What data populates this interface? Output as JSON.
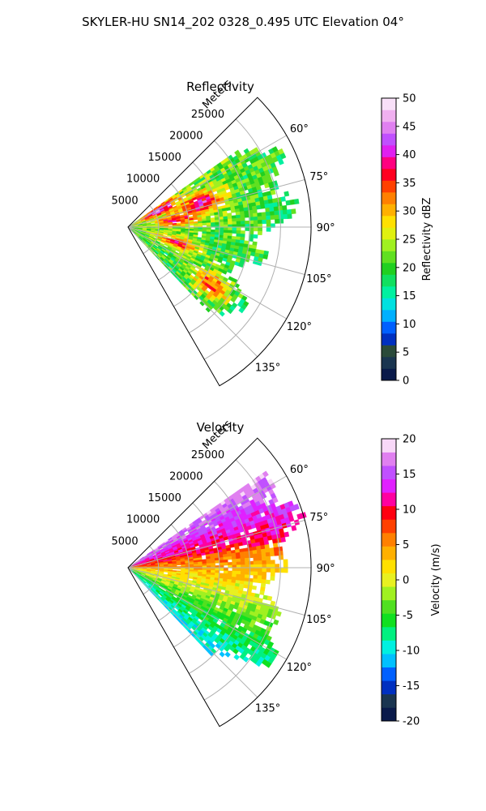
{
  "figure_title": "SKYLER-HU  SN14_202  0328_0.495 UTC Elevation 04°",
  "chart_data": [
    {
      "type": "heatmap",
      "projection": "polar-sector",
      "title": "Reflectivity",
      "radial_label": "Meters",
      "radial_ticks": [
        5000,
        10000,
        15000,
        20000,
        25000
      ],
      "radial_tick_labels": [
        "5000",
        "10000",
        "15000",
        "20000",
        "25000"
      ],
      "rmax": 30000,
      "azimuth_range": [
        45,
        150
      ],
      "azimuth_ticks": [
        60,
        75,
        90,
        105,
        120,
        135
      ],
      "azimuth_tick_labels": [
        "60°",
        "75°",
        "90°",
        "105°",
        "120°",
        "135°"
      ],
      "grid": true,
      "colorbar": {
        "label": "Reflectivity dBZ",
        "range": [
          0,
          50
        ],
        "ticks": [
          0,
          5,
          10,
          15,
          20,
          25,
          30,
          35,
          40,
          45,
          50
        ],
        "tick_labels": [
          "0",
          "5",
          "10",
          "15",
          "20",
          "25",
          "30",
          "35",
          "40",
          "45",
          "50"
        ]
      },
      "data_extent_azimuth": [
        55,
        135
      ],
      "field_features": [
        {
          "name": "intense-core-near-radar",
          "az": 62,
          "r": 5500,
          "value": 42
        },
        {
          "name": "core-northeast",
          "az": 72,
          "r": 13000,
          "value": 40
        },
        {
          "name": "core-east",
          "az": 82,
          "r": 8000,
          "value": 38
        },
        {
          "name": "core-southeast",
          "az": 108,
          "r": 8500,
          "value": 37
        },
        {
          "name": "core-south",
          "az": 125,
          "r": 16500,
          "value": 37
        }
      ]
    },
    {
      "type": "heatmap",
      "projection": "polar-sector",
      "title": "Velocity",
      "radial_label": "Meters",
      "radial_ticks": [
        5000,
        10000,
        15000,
        20000,
        25000
      ],
      "radial_tick_labels": [
        "5000",
        "10000",
        "15000",
        "20000",
        "25000"
      ],
      "rmax": 30000,
      "azimuth_range": [
        45,
        150
      ],
      "azimuth_ticks": [
        60,
        75,
        90,
        105,
        120,
        135
      ],
      "azimuth_tick_labels": [
        "60°",
        "75°",
        "90°",
        "105°",
        "120°",
        "135°"
      ],
      "grid": true,
      "colorbar": {
        "label": "Velocity (m/s)",
        "range": [
          -20,
          20
        ],
        "ticks": [
          -20,
          -15,
          -10,
          -5,
          0,
          5,
          10,
          15,
          20
        ],
        "tick_labels": [
          "-20",
          "-15",
          "-10",
          "-5",
          "0",
          "5",
          "10",
          "15",
          "20"
        ]
      },
      "data_extent_azimuth": [
        55,
        135
      ],
      "field_features": [
        {
          "name": "outbound-north",
          "az": 65,
          "r": 22000,
          "value": 14
        },
        {
          "name": "outbound-band",
          "az": 82,
          "r": 17000,
          "value": 9
        },
        {
          "name": "near-zero-east",
          "az": 95,
          "r": 20000,
          "value": 1
        },
        {
          "name": "inbound-southeast",
          "az": 115,
          "r": 18000,
          "value": -5
        },
        {
          "name": "inbound-south",
          "az": 130,
          "r": 20000,
          "value": -10
        }
      ]
    }
  ],
  "colors": {
    "reflectivity_scale": [
      "#0a1a4a",
      "#1a3550",
      "#2a4a3a",
      "#0030c0",
      "#0060ff",
      "#00b0ff",
      "#00e0e0",
      "#00f0a0",
      "#10e060",
      "#20d020",
      "#60e020",
      "#a0f020",
      "#e0f010",
      "#ffe000",
      "#ffb000",
      "#ff8000",
      "#ff4000",
      "#ff0020",
      "#ff0080",
      "#e020f0",
      "#c050ff",
      "#e080f0",
      "#f0b0f0",
      "#f8e0f8"
    ],
    "velocity_scale": [
      "#0a1a4a",
      "#1a3550",
      "#0030c0",
      "#0060ff",
      "#00c0ff",
      "#00f0e0",
      "#00f080",
      "#10e020",
      "#50e020",
      "#a0f020",
      "#e8f020",
      "#ffe000",
      "#ffb000",
      "#ff8000",
      "#ff4000",
      "#ff0010",
      "#ff00a0",
      "#e020ff",
      "#c050ff",
      "#e080f0",
      "#f8d8f8"
    ]
  }
}
